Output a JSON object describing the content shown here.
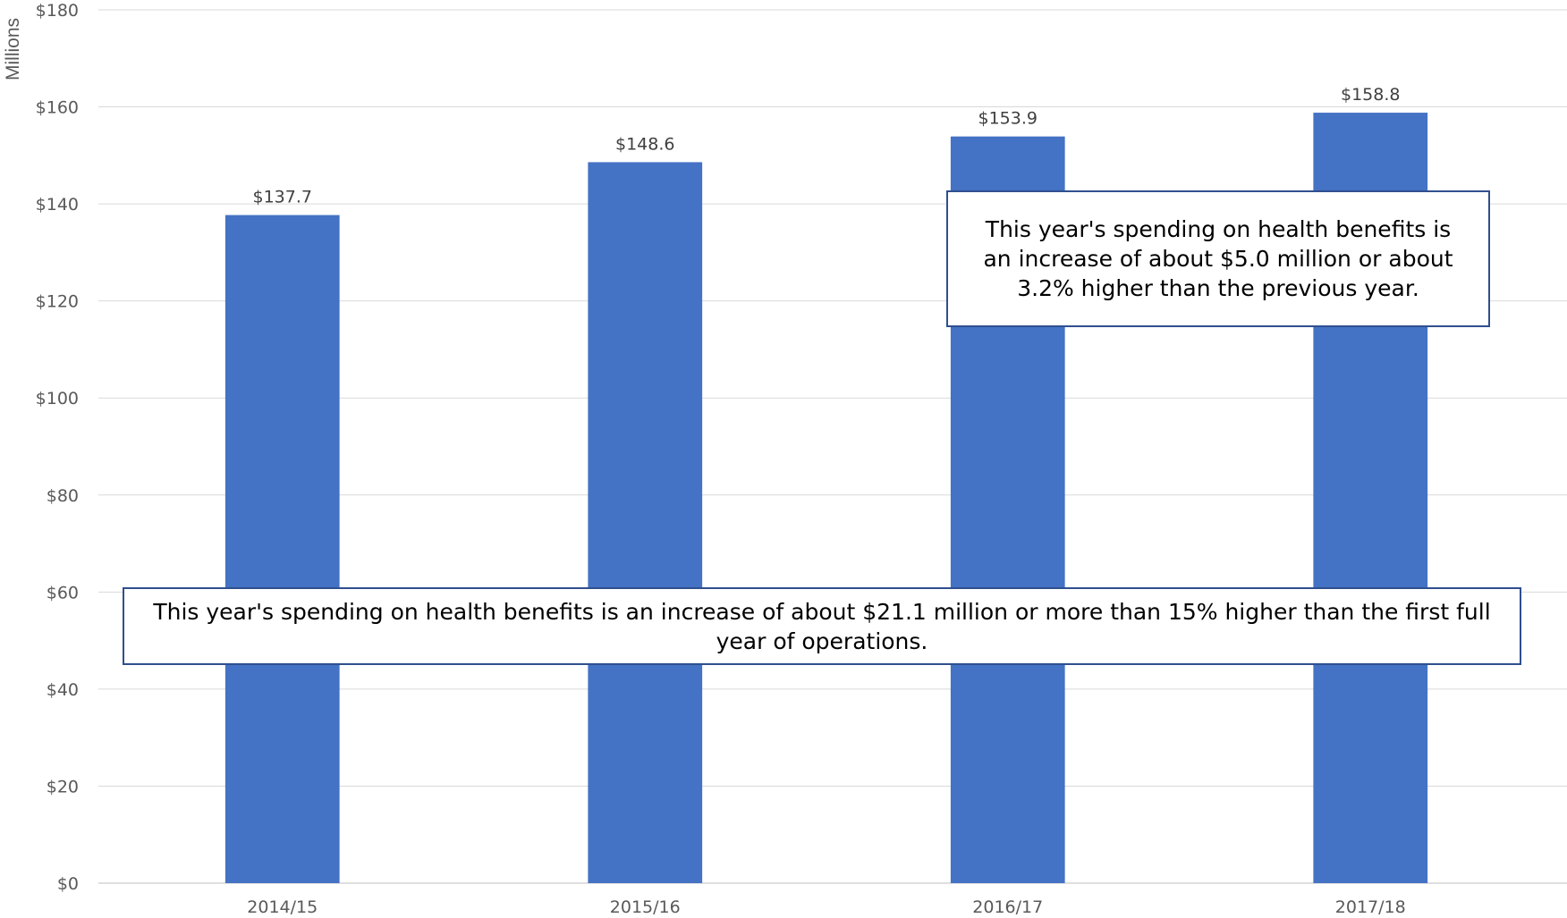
{
  "chart_data": {
    "type": "bar",
    "ylabel": "Millions",
    "xlabel": "",
    "ylim": [
      0,
      180
    ],
    "y_tick_step": 20,
    "y_tick_prefix": "$",
    "grid": true,
    "bar_color": "#4472c4",
    "categories": [
      "2014/15",
      "2015/16",
      "2016/17",
      "2017/18"
    ],
    "values": [
      137.7,
      148.6,
      153.9,
      158.8
    ],
    "data_labels": [
      "$137.7",
      "$148.6",
      "$153.9",
      "$158.8"
    ],
    "annotations": [
      {
        "text": "This year's spending on health benefits is an increase of about $5.0 million or about 3.2% higher than the previous year."
      },
      {
        "text": "This year's spending on health benefits is an increase of about $21.1 million or more than 15% higher than the first full year of operations."
      }
    ]
  }
}
